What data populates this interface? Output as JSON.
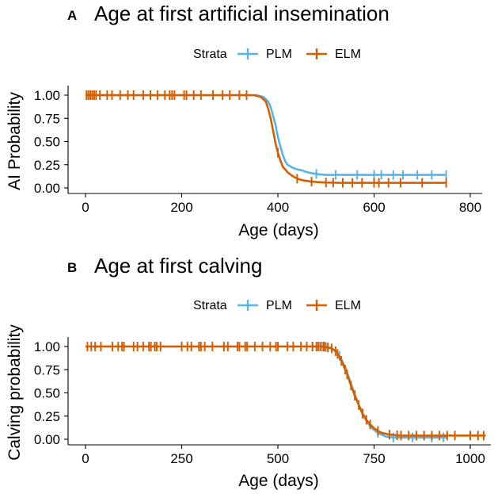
{
  "chart_data": [
    {
      "type": "line",
      "panel_label": "A",
      "title": "Age at first artificial insemination",
      "xlabel": "Age (days)",
      "ylabel": "AI Probability",
      "xlim": [
        0,
        800
      ],
      "ylim": [
        0,
        1
      ],
      "xticks": [
        0,
        200,
        400,
        600,
        800
      ],
      "yticks": [
        0.0,
        0.25,
        0.5,
        0.75,
        1.0
      ],
      "ytick_labels": [
        "0.00",
        "0.25",
        "0.50",
        "0.75",
        "1.00"
      ],
      "legend_title": "Strata",
      "legend_position": "top",
      "series": [
        {
          "name": "PLM",
          "color": "#56B4E9",
          "x": [
            0,
            355,
            370,
            380,
            385,
            390,
            395,
            400,
            405,
            410,
            415,
            420,
            430,
            440,
            450,
            460,
            470,
            480,
            500,
            750
          ],
          "y": [
            1.0,
            1.0,
            0.98,
            0.93,
            0.87,
            0.78,
            0.68,
            0.55,
            0.45,
            0.36,
            0.29,
            0.25,
            0.22,
            0.2,
            0.19,
            0.17,
            0.16,
            0.15,
            0.14,
            0.14
          ],
          "censored_x": [
            480,
            520,
            565,
            600,
            615,
            640,
            660,
            690,
            720,
            750
          ]
        },
        {
          "name": "ELM",
          "color": "#D55E00",
          "x": [
            0,
            350,
            365,
            375,
            380,
            385,
            390,
            395,
            400,
            405,
            410,
            420,
            430,
            440,
            450,
            460,
            470,
            480,
            500,
            530,
            750
          ],
          "y": [
            1.0,
            1.0,
            0.98,
            0.93,
            0.85,
            0.75,
            0.62,
            0.48,
            0.38,
            0.3,
            0.23,
            0.17,
            0.13,
            0.1,
            0.085,
            0.075,
            0.068,
            0.063,
            0.058,
            0.055,
            0.055
          ],
          "censored_x": [
            2,
            6,
            10,
            14,
            18,
            22,
            30,
            45,
            55,
            72,
            88,
            100,
            120,
            135,
            150,
            165,
            175,
            180,
            185,
            205,
            210,
            225,
            240,
            265,
            285,
            300,
            320,
            335,
            400,
            440,
            470,
            500,
            515,
            535,
            555,
            575,
            600,
            610,
            630,
            655,
            700,
            750
          ]
        }
      ]
    },
    {
      "type": "line",
      "panel_label": "B",
      "title": "Age at first calving",
      "xlabel": "Age (days)",
      "ylabel": "Calving probability",
      "xlim": [
        0,
        1040
      ],
      "ylim": [
        0,
        1
      ],
      "xticks": [
        0,
        250,
        500,
        750,
        1000
      ],
      "yticks": [
        0.0,
        0.25,
        0.5,
        0.75,
        1.0
      ],
      "ytick_labels": [
        "0.00",
        "0.25",
        "0.50",
        "0.75",
        "1.00"
      ],
      "legend_title": "Strata",
      "legend_position": "top",
      "series": [
        {
          "name": "PLM",
          "color": "#56B4E9",
          "x": [
            0,
            620,
            640,
            650,
            660,
            670,
            680,
            690,
            700,
            710,
            720,
            730,
            740,
            750,
            760,
            770,
            780,
            800,
            830,
            940
          ],
          "y": [
            1.0,
            1.0,
            0.98,
            0.95,
            0.9,
            0.82,
            0.72,
            0.6,
            0.48,
            0.37,
            0.27,
            0.2,
            0.14,
            0.1,
            0.07,
            0.05,
            0.03,
            0.02,
            0.02,
            0.02
          ],
          "censored_x": [
            590,
            610,
            625,
            660,
            700,
            720,
            760,
            800,
            850,
            900,
            930
          ]
        },
        {
          "name": "ELM",
          "color": "#D55E00",
          "x": [
            0,
            620,
            640,
            650,
            660,
            670,
            680,
            690,
            700,
            710,
            720,
            730,
            740,
            750,
            760,
            770,
            790,
            820,
            1040
          ],
          "y": [
            1.0,
            1.0,
            0.98,
            0.95,
            0.89,
            0.8,
            0.7,
            0.58,
            0.47,
            0.37,
            0.28,
            0.21,
            0.16,
            0.12,
            0.09,
            0.07,
            0.05,
            0.04,
            0.04
          ],
          "censored_x": [
            5,
            15,
            25,
            40,
            70,
            85,
            95,
            100,
            125,
            135,
            150,
            165,
            170,
            180,
            185,
            195,
            250,
            265,
            275,
            295,
            300,
            310,
            330,
            360,
            370,
            395,
            400,
            415,
            420,
            440,
            460,
            480,
            495,
            500,
            525,
            540,
            560,
            575,
            590,
            600,
            605,
            612,
            618,
            622,
            630,
            640,
            650,
            655,
            665,
            675,
            680,
            690,
            700,
            710,
            720,
            730,
            740,
            760,
            790,
            810,
            820,
            840,
            860,
            880,
            900,
            920,
            940,
            960,
            1000,
            1020,
            1035
          ]
        }
      ]
    }
  ]
}
